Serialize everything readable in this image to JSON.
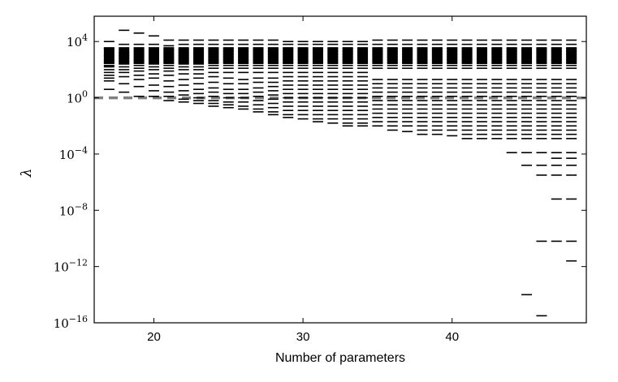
{
  "chart_data": {
    "type": "scatter",
    "marker": "horizontal-dash",
    "xlabel": "Number of parameters",
    "ylabel": "λ",
    "yscale": "log",
    "xlim": [
      16,
      49
    ],
    "ylim_log10": [
      -16,
      5.8
    ],
    "xticks": [
      20,
      30,
      40
    ],
    "yticks": [
      {
        "exp": 4,
        "base": "10",
        "sup": "4"
      },
      {
        "exp": 0,
        "base": "10",
        "sup": "0"
      },
      {
        "exp": -4,
        "base": "10",
        "sup": "−4"
      },
      {
        "exp": -8,
        "base": "10",
        "sup": "−8"
      },
      {
        "exp": -12,
        "base": "10",
        "sup": "−12"
      },
      {
        "exp": -16,
        "base": "10",
        "sup": "−16"
      }
    ],
    "grid": false,
    "legend": "none",
    "reference_line": {
      "y": 1,
      "style": "dashed",
      "color": "#808080"
    },
    "bulk_log10_range": [
      2.4,
      3.6
    ],
    "series": [
      {
        "x": 17,
        "log10_lambda": [
          4.0,
          3.5,
          3.0,
          2.7,
          2.5,
          2.3,
          2.2,
          2.0,
          1.8,
          1.6,
          1.4,
          1.2,
          0.6
        ]
      },
      {
        "x": 18,
        "log10_lambda": [
          4.8,
          3.8,
          3.2,
          3.0,
          2.8,
          2.6,
          2.4,
          2.2,
          2.0,
          1.8,
          1.5,
          1.0,
          0.4
        ]
      },
      {
        "x": 19,
        "log10_lambda": [
          4.6,
          3.8,
          3.3,
          3.1,
          2.9,
          2.7,
          2.5,
          2.3,
          2.1,
          1.9,
          1.6,
          1.3,
          0.8,
          0.1
        ]
      },
      {
        "x": 20,
        "log10_lambda": [
          4.4,
          3.8,
          3.4,
          3.2,
          3.0,
          2.8,
          2.6,
          2.4,
          2.2,
          2.0,
          1.7,
          1.4,
          0.9,
          0.5,
          0.1
        ]
      },
      {
        "x": 21,
        "log10_lambda": [
          4.1,
          3.7,
          3.4,
          3.1,
          2.9,
          2.7,
          2.5,
          2.3,
          2.1,
          1.9,
          1.6,
          1.2,
          0.8,
          0.4,
          0.1,
          -0.2
        ]
      },
      {
        "x": 22,
        "log10_lambda": [
          4.1,
          3.8,
          3.4,
          3.2,
          3.0,
          2.8,
          2.6,
          2.4,
          2.2,
          2.0,
          1.7,
          1.3,
          0.9,
          0.5,
          0.2,
          -0.1,
          -0.3
        ]
      },
      {
        "x": 23,
        "log10_lambda": [
          4.1,
          3.8,
          3.5,
          3.2,
          3.0,
          2.8,
          2.6,
          2.4,
          2.2,
          2.0,
          1.7,
          1.4,
          1.0,
          0.6,
          0.3,
          0.0,
          -0.2,
          -0.4
        ]
      },
      {
        "x": 24,
        "log10_lambda": [
          4.1,
          3.8,
          3.5,
          3.3,
          3.1,
          2.9,
          2.7,
          2.5,
          2.3,
          2.1,
          1.8,
          1.5,
          1.1,
          0.7,
          0.4,
          0.1,
          -0.2,
          -0.4,
          -0.6
        ]
      },
      {
        "x": 25,
        "log10_lambda": [
          4.1,
          3.8,
          3.5,
          3.3,
          3.1,
          2.9,
          2.7,
          2.5,
          2.3,
          2.1,
          1.8,
          1.4,
          1.0,
          0.6,
          0.3,
          0.0,
          -0.3,
          -0.5,
          -0.7
        ]
      },
      {
        "x": 26,
        "log10_lambda": [
          4.1,
          3.8,
          3.5,
          3.3,
          3.1,
          2.9,
          2.7,
          2.5,
          2.3,
          2.1,
          1.8,
          1.3,
          1.0,
          0.6,
          0.3,
          0.0,
          -0.3,
          -0.6,
          -0.8
        ]
      },
      {
        "x": 27,
        "log10_lambda": [
          4.1,
          3.8,
          3.5,
          3.3,
          3.1,
          2.9,
          2.7,
          2.5,
          2.3,
          2.1,
          1.8,
          1.4,
          1.1,
          0.7,
          0.4,
          0.1,
          -0.2,
          -0.5,
          -0.8,
          -1.0
        ]
      },
      {
        "x": 28,
        "log10_lambda": [
          4.1,
          3.8,
          3.5,
          3.3,
          3.1,
          2.9,
          2.7,
          2.5,
          2.3,
          2.1,
          1.8,
          1.4,
          1.1,
          0.8,
          0.5,
          0.2,
          -0.1,
          -0.4,
          -0.7,
          -1.0,
          -1.2
        ]
      },
      {
        "x": 29,
        "log10_lambda": [
          4.0,
          3.8,
          3.5,
          3.3,
          3.1,
          2.9,
          2.7,
          2.5,
          2.3,
          2.1,
          1.8,
          1.5,
          1.2,
          0.9,
          0.6,
          0.3,
          0.0,
          -0.3,
          -0.6,
          -0.9,
          -1.2,
          -1.4
        ]
      },
      {
        "x": 30,
        "log10_lambda": [
          4.0,
          3.8,
          3.5,
          3.3,
          3.1,
          2.9,
          2.7,
          2.5,
          2.3,
          2.1,
          1.8,
          1.5,
          1.2,
          0.9,
          0.6,
          0.3,
          0.0,
          -0.3,
          -0.6,
          -0.9,
          -1.2,
          -1.5
        ]
      },
      {
        "x": 31,
        "log10_lambda": [
          4.0,
          3.8,
          3.5,
          3.3,
          3.1,
          2.9,
          2.7,
          2.5,
          2.3,
          2.1,
          1.8,
          1.5,
          1.2,
          0.9,
          0.6,
          0.3,
          0.0,
          -0.3,
          -0.6,
          -0.9,
          -1.2,
          -1.5,
          -1.7
        ]
      },
      {
        "x": 32,
        "log10_lambda": [
          4.0,
          3.8,
          3.5,
          3.3,
          3.1,
          2.9,
          2.7,
          2.5,
          2.3,
          2.1,
          1.8,
          1.5,
          1.2,
          0.9,
          0.6,
          0.3,
          0.0,
          -0.3,
          -0.6,
          -0.9,
          -1.2,
          -1.5,
          -1.8
        ]
      },
      {
        "x": 33,
        "log10_lambda": [
          4.0,
          3.8,
          3.5,
          3.3,
          3.1,
          2.9,
          2.7,
          2.5,
          2.3,
          2.1,
          1.8,
          1.5,
          1.2,
          0.9,
          0.6,
          0.3,
          0.0,
          -0.3,
          -0.6,
          -0.9,
          -1.2,
          -1.5,
          -1.8,
          -2.0
        ]
      },
      {
        "x": 34,
        "log10_lambda": [
          4.0,
          3.8,
          3.5,
          3.3,
          3.1,
          2.9,
          2.7,
          2.5,
          2.3,
          2.1,
          1.8,
          1.5,
          1.2,
          0.9,
          0.6,
          0.3,
          0.0,
          -0.3,
          -0.6,
          -0.9,
          -1.2,
          -1.5,
          -1.8,
          -2.0
        ]
      },
      {
        "x": 35,
        "log10_lambda": [
          4.1,
          3.8,
          3.5,
          3.3,
          3.1,
          2.9,
          2.7,
          2.5,
          2.3,
          2.1,
          1.3,
          1.0,
          0.7,
          0.4,
          0.1,
          -0.2,
          -0.5,
          -0.8,
          -1.1,
          -1.4,
          -1.7,
          -2.0
        ]
      },
      {
        "x": 36,
        "log10_lambda": [
          4.1,
          3.8,
          3.5,
          3.3,
          3.1,
          2.9,
          2.7,
          2.5,
          2.3,
          2.1,
          1.3,
          1.0,
          0.7,
          0.4,
          0.1,
          -0.2,
          -0.5,
          -0.8,
          -1.1,
          -1.4,
          -1.7,
          -2.0,
          -2.3
        ]
      },
      {
        "x": 37,
        "log10_lambda": [
          4.1,
          3.8,
          3.5,
          3.3,
          3.1,
          2.9,
          2.7,
          2.5,
          2.3,
          2.1,
          1.3,
          1.0,
          0.7,
          0.4,
          0.1,
          -0.2,
          -0.5,
          -0.8,
          -1.1,
          -1.4,
          -1.7,
          -2.0,
          -2.4
        ]
      },
      {
        "x": 38,
        "log10_lambda": [
          4.1,
          3.8,
          3.5,
          3.3,
          3.1,
          2.9,
          2.7,
          2.5,
          2.3,
          2.1,
          1.3,
          1.0,
          0.7,
          0.4,
          0.1,
          -0.2,
          -0.5,
          -0.8,
          -1.1,
          -1.4,
          -1.7,
          -2.0,
          -2.3,
          -2.6
        ]
      },
      {
        "x": 39,
        "log10_lambda": [
          4.1,
          3.8,
          3.5,
          3.3,
          3.1,
          2.9,
          2.7,
          2.5,
          2.3,
          2.1,
          1.3,
          1.0,
          0.7,
          0.4,
          0.1,
          -0.2,
          -0.5,
          -0.8,
          -1.1,
          -1.4,
          -1.7,
          -2.0,
          -2.3,
          -2.6
        ]
      },
      {
        "x": 40,
        "log10_lambda": [
          4.1,
          3.8,
          3.5,
          3.3,
          3.1,
          2.9,
          2.7,
          2.5,
          2.3,
          2.1,
          1.3,
          1.0,
          0.7,
          0.4,
          0.1,
          -0.2,
          -0.5,
          -0.8,
          -1.1,
          -1.4,
          -1.7,
          -2.0,
          -2.3,
          -2.7
        ]
      },
      {
        "x": 41,
        "log10_lambda": [
          4.1,
          3.8,
          3.5,
          3.3,
          3.1,
          2.9,
          2.7,
          2.5,
          2.3,
          2.1,
          1.3,
          1.0,
          0.7,
          0.4,
          0.1,
          -0.2,
          -0.5,
          -0.8,
          -1.1,
          -1.4,
          -1.7,
          -2.0,
          -2.3,
          -2.6,
          -2.9
        ]
      },
      {
        "x": 42,
        "log10_lambda": [
          4.1,
          3.8,
          3.5,
          3.3,
          3.1,
          2.9,
          2.7,
          2.5,
          2.3,
          2.1,
          1.3,
          1.0,
          0.7,
          0.4,
          0.1,
          -0.2,
          -0.5,
          -0.8,
          -1.1,
          -1.4,
          -1.7,
          -2.0,
          -2.3,
          -2.6,
          -2.9
        ]
      },
      {
        "x": 43,
        "log10_lambda": [
          4.1,
          3.8,
          3.5,
          3.3,
          3.1,
          2.9,
          2.7,
          2.5,
          2.3,
          2.1,
          1.3,
          1.0,
          0.7,
          0.4,
          0.1,
          -0.2,
          -0.5,
          -0.8,
          -1.1,
          -1.4,
          -1.7,
          -2.0,
          -2.3,
          -2.6,
          -2.9
        ]
      },
      {
        "x": 44,
        "log10_lambda": [
          4.1,
          3.8,
          3.5,
          3.3,
          3.1,
          2.9,
          2.7,
          2.5,
          2.3,
          2.1,
          1.3,
          1.0,
          0.7,
          0.4,
          0.1,
          -0.2,
          -0.5,
          -0.8,
          -1.1,
          -1.4,
          -1.7,
          -2.0,
          -2.3,
          -2.6,
          -2.9,
          -3.9
        ]
      },
      {
        "x": 45,
        "log10_lambda": [
          4.1,
          3.8,
          3.5,
          3.3,
          3.1,
          2.9,
          2.7,
          2.5,
          2.3,
          2.1,
          1.3,
          1.0,
          0.7,
          0.4,
          0.1,
          -0.2,
          -0.5,
          -0.8,
          -1.1,
          -1.4,
          -1.7,
          -2.0,
          -2.3,
          -2.6,
          -2.9,
          -3.9,
          -4.8,
          -14.0
        ]
      },
      {
        "x": 46,
        "log10_lambda": [
          4.1,
          3.8,
          3.5,
          3.3,
          3.1,
          2.9,
          2.7,
          2.5,
          2.3,
          2.1,
          1.3,
          1.0,
          0.7,
          0.4,
          0.1,
          -0.2,
          -0.5,
          -0.8,
          -1.1,
          -1.4,
          -1.7,
          -2.0,
          -2.3,
          -2.6,
          -2.9,
          -3.9,
          -4.8,
          -5.5,
          -10.2,
          -15.5
        ]
      },
      {
        "x": 47,
        "log10_lambda": [
          4.1,
          3.8,
          3.5,
          3.3,
          3.1,
          2.9,
          2.7,
          2.5,
          2.3,
          2.1,
          1.3,
          1.0,
          0.7,
          0.4,
          0.1,
          -0.2,
          -0.5,
          -0.8,
          -1.1,
          -1.4,
          -1.7,
          -2.0,
          -2.3,
          -2.6,
          -2.9,
          -3.9,
          -4.3,
          -4.8,
          -5.5,
          -7.2,
          -10.2
        ]
      },
      {
        "x": 48,
        "log10_lambda": [
          4.1,
          3.8,
          3.5,
          3.3,
          3.1,
          2.9,
          2.7,
          2.5,
          2.3,
          2.1,
          1.3,
          1.0,
          0.7,
          0.4,
          0.1,
          -0.2,
          -0.5,
          -0.8,
          -1.1,
          -1.4,
          -1.7,
          -2.0,
          -2.3,
          -2.6,
          -2.9,
          -3.9,
          -4.3,
          -4.8,
          -5.5,
          -7.2,
          -10.2,
          -11.6
        ]
      }
    ]
  }
}
